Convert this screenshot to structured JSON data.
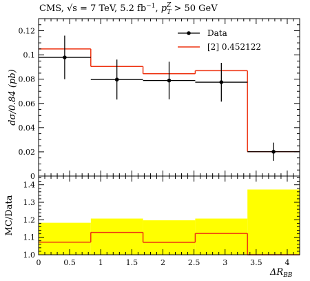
{
  "header": {
    "title_prefix": "CMS, ",
    "sqrt_s": "√s = 7 TeV, 5.2 fb",
    "lumi_exp": "−1",
    "sep": ", ",
    "pt": "p",
    "pt_sup": "Z",
    "pt_sub": "T",
    "cut": " > 50 GeV"
  },
  "chart_data": [
    {
      "id": "main",
      "type": "histogram",
      "ylabel_main": "dσ/0.84 (pb)",
      "xlim": [
        0,
        4.2
      ],
      "ylim": [
        0,
        0.13
      ],
      "yticks": [
        0,
        0.02,
        0.04,
        0.06,
        0.08,
        0.1,
        0.12
      ],
      "ytick_labels": [
        "0",
        "0.02",
        "0.04",
        "0.06",
        "0.08",
        "0.1",
        "0.12"
      ],
      "bin_edges": [
        0,
        0.84,
        1.68,
        2.52,
        3.36,
        4.2
      ],
      "series": [
        {
          "name": "Data",
          "kind": "points",
          "color": "#000000",
          "x": [
            0.42,
            1.26,
            2.1,
            2.94,
            3.78
          ],
          "y": [
            0.098,
            0.0797,
            0.0789,
            0.0775,
            0.0201
          ],
          "err": [
            0.018,
            0.0165,
            0.0155,
            0.016,
            0.0075
          ]
        },
        {
          "name": "[2] 0.452122",
          "kind": "step",
          "color": "#ee3311",
          "values": [
            0.105,
            0.0905,
            0.0845,
            0.087,
            0.0202
          ]
        }
      ],
      "legend_position": "top-right"
    },
    {
      "id": "ratio",
      "type": "histogram",
      "ylabel": "MC/Data",
      "xlabel": "ΔR",
      "xlabel_sub": "BB",
      "xlim": [
        0,
        4.2
      ],
      "ylim": [
        1.0,
        1.45
      ],
      "yticks": [
        1.0,
        1.1,
        1.2,
        1.3,
        1.4
      ],
      "ytick_labels": [
        "1.0",
        "1.1",
        "1.2",
        "1.3",
        "1.4"
      ],
      "xticks": [
        0,
        0.5,
        1,
        1.5,
        2,
        2.5,
        3,
        3.5,
        4
      ],
      "xtick_labels": [
        "0",
        "0.5",
        "1",
        "1.5",
        "2",
        "2.5",
        "3",
        "3.5",
        "4"
      ],
      "bin_edges": [
        0,
        0.84,
        1.68,
        2.52,
        3.36,
        4.2
      ],
      "band": {
        "color": "#ffff00",
        "upper": [
          1.183,
          1.207,
          1.197,
          1.207,
          1.373
        ],
        "lower": [
          1.0,
          1.0,
          1.0,
          1.0,
          1.0
        ]
      },
      "ratio": {
        "color": "#ee3311",
        "values": [
          1.072,
          1.128,
          1.071,
          1.122,
          1.0
        ]
      }
    }
  ]
}
